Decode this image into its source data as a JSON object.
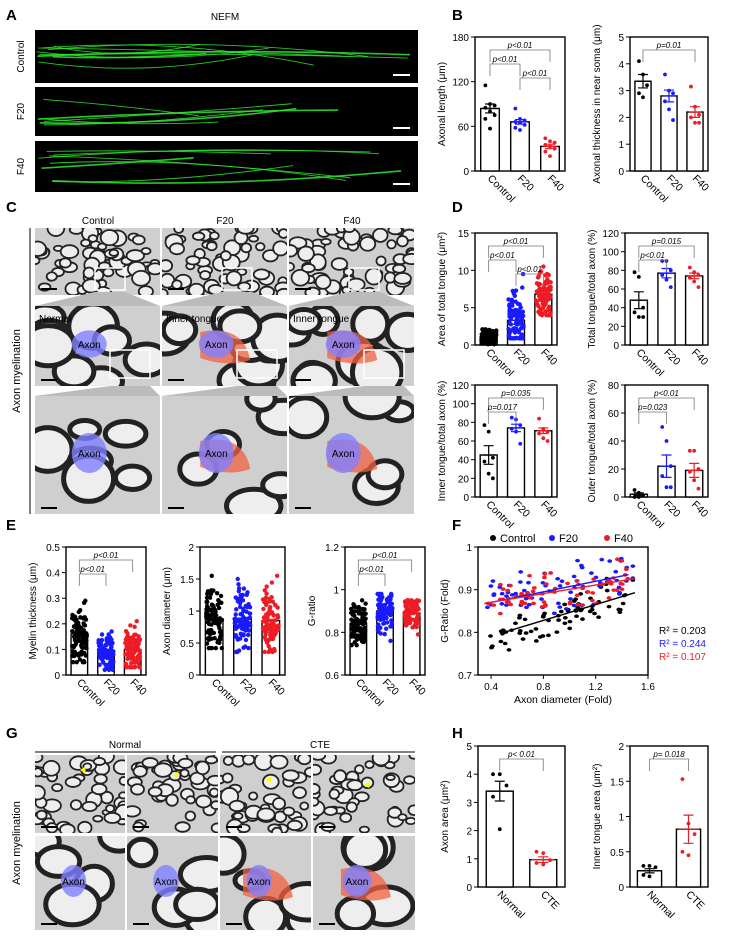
{
  "panel_labels": [
    "A",
    "B",
    "C",
    "D",
    "E",
    "F",
    "G",
    "H"
  ],
  "panel_a": {
    "title": "NEFM",
    "rows": [
      "Control",
      "F20",
      "F40"
    ]
  },
  "panel_c": {
    "side_label": "Axon myelination",
    "columns": [
      "Control",
      "F20",
      "F40"
    ],
    "mid_labels": [
      "Normal",
      "Inner tongue",
      "Inner tongue"
    ],
    "axon_label": "Axon"
  },
  "panel_g": {
    "side_label": "Axon myelination",
    "groups": [
      "Normal",
      "CTE"
    ],
    "axon_label": "Axon"
  },
  "colors": {
    "Control": "#000000",
    "F20": "#1a1aff",
    "F40": "#ee1c25",
    "Normal": "#000000",
    "CTE": "#ee1c25",
    "fluor": "#2ee82e",
    "blue_overlay": "#8080ff",
    "red_overlay": "#f06040"
  },
  "chart_data": [
    {
      "id": "B1",
      "type": "bar",
      "ylabel": "Axonal length (μm)",
      "ylim": [
        0,
        180
      ],
      "yticks": [
        0,
        60,
        120,
        180
      ],
      "categories": [
        "Control",
        "F20",
        "F40"
      ],
      "means": [
        84,
        66,
        33
      ],
      "sem": [
        6,
        3,
        3
      ],
      "points": [
        [
          115,
          90,
          88,
          85,
          80,
          75,
          70,
          57
        ],
        [
          84,
          70,
          68,
          66,
          65,
          62,
          58,
          55
        ],
        [
          44,
          40,
          38,
          35,
          33,
          30,
          26,
          20
        ]
      ],
      "comparisons": [
        {
          "a": 0,
          "b": 2,
          "label": "p<0.01"
        },
        {
          "a": 0,
          "b": 1,
          "label": "p<0.01"
        },
        {
          "a": 1,
          "b": 2,
          "label": "p<0.01"
        }
      ]
    },
    {
      "id": "B2",
      "type": "bar",
      "ylabel": "Axonal thickness in near soma (μm)",
      "ylim": [
        0,
        5
      ],
      "yticks": [
        0,
        1,
        2,
        3,
        4,
        5
      ],
      "categories": [
        "Control",
        "F20",
        "F40"
      ],
      "means": [
        3.35,
        2.8,
        2.2
      ],
      "sem": [
        0.25,
        0.22,
        0.2
      ],
      "points": [
        [
          4.1,
          3.6,
          3.2,
          2.9,
          2.75
        ],
        [
          3.6,
          3.0,
          2.9,
          2.6,
          2.3,
          1.9
        ],
        [
          3.15,
          2.4,
          2.1,
          2.0,
          1.8,
          1.8
        ]
      ],
      "comparisons": [
        {
          "a": 0,
          "b": 2,
          "label": "p=0.01"
        }
      ]
    },
    {
      "id": "D1",
      "type": "bar",
      "ylabel": "Area of total tongue (μm²)",
      "ylim": [
        0,
        15
      ],
      "yticks": [
        0,
        5,
        10,
        15
      ],
      "categories": [
        "Control",
        "F20",
        "F40"
      ],
      "means": [
        1.1,
        3.3,
        6.8
      ],
      "sem": [
        0.15,
        0.5,
        0.5
      ],
      "ranges": [
        [
          0.1,
          2.1
        ],
        [
          0.9,
          9.5
        ],
        [
          4.0,
          10.5
        ]
      ],
      "comparisons": [
        {
          "a": 0,
          "b": 2,
          "label": "p<0.01"
        },
        {
          "a": 0,
          "b": 1,
          "label": "p<0.01"
        },
        {
          "a": 1,
          "b": 2,
          "label": "p<0.01"
        }
      ]
    },
    {
      "id": "D2",
      "type": "bar",
      "ylabel": "Total tongue/total axon (%)",
      "ylim": [
        0,
        120
      ],
      "yticks": [
        0,
        20,
        40,
        60,
        80,
        100,
        120
      ],
      "categories": [
        "Control",
        "F20",
        "F40"
      ],
      "means": [
        48,
        77,
        74
      ],
      "sem": [
        9,
        5,
        3
      ],
      "points": [
        [
          78,
          73,
          40,
          35,
          30,
          30
        ],
        [
          90,
          90,
          80,
          75,
          70,
          62
        ],
        [
          83,
          78,
          75,
          72,
          68,
          62
        ]
      ],
      "comparisons": [
        {
          "a": 0,
          "b": 2,
          "label": "p=0.015"
        },
        {
          "a": 0,
          "b": 1,
          "label": "p<0.01"
        }
      ]
    },
    {
      "id": "D3",
      "type": "bar",
      "ylabel": "Inner tongue/total axon (%)",
      "ylim": [
        0,
        120
      ],
      "yticks": [
        0,
        20,
        40,
        60,
        80,
        100,
        120
      ],
      "categories": [
        "Control",
        "F20",
        "F40"
      ],
      "means": [
        45,
        74,
        71
      ],
      "sem": [
        10,
        4,
        3
      ],
      "points": [
        [
          77,
          70,
          42,
          38,
          25,
          20
        ],
        [
          85,
          83,
          77,
          73,
          70,
          57
        ],
        [
          84,
          73,
          70,
          68,
          63,
          60
        ]
      ],
      "comparisons": [
        {
          "a": 0,
          "b": 2,
          "label": "p=0.035"
        },
        {
          "a": 0,
          "b": 1,
          "label": "p=0.017"
        }
      ]
    },
    {
      "id": "D4",
      "type": "bar",
      "ylabel": "Outer tongue/total axon (%)",
      "ylim": [
        0,
        80
      ],
      "yticks": [
        0,
        20,
        40,
        60,
        80
      ],
      "categories": [
        "Control",
        "F20",
        "F40"
      ],
      "means": [
        2,
        22,
        19
      ],
      "sem": [
        1,
        8,
        5
      ],
      "points": [
        [
          5,
          3,
          1,
          0,
          0
        ],
        [
          50,
          40,
          22,
          15,
          7,
          7
        ],
        [
          33,
          33,
          20,
          18,
          12,
          6
        ]
      ],
      "comparisons": [
        {
          "a": 0,
          "b": 2,
          "label": "p<0.01"
        },
        {
          "a": 0,
          "b": 1,
          "label": "p=0.023"
        }
      ]
    },
    {
      "id": "E1",
      "type": "bar",
      "ylabel": "Myelin thickness (μm)",
      "ylim": [
        0,
        0.5
      ],
      "yticks": [
        0,
        0.1,
        0.2,
        0.3,
        0.4,
        0.5
      ],
      "categories": [
        "Control",
        "F20",
        "F40"
      ],
      "means": [
        0.16,
        0.09,
        0.1
      ],
      "sem": [
        0.005,
        0.003,
        0.003
      ],
      "ranges": [
        [
          0.05,
          0.29
        ],
        [
          0.02,
          0.17
        ],
        [
          0.03,
          0.21
        ]
      ],
      "comparisons": [
        {
          "a": 0,
          "b": 2,
          "label": "p<0.01"
        },
        {
          "a": 0,
          "b": 1,
          "label": "p<0.01"
        }
      ]
    },
    {
      "id": "E2",
      "type": "bar",
      "ylabel": "Axon diameter (μm)",
      "ylim": [
        0,
        2.0
      ],
      "yticks": [
        0,
        0.5,
        1.0,
        1.5,
        2.0
      ],
      "categories": [
        "Control",
        "F20",
        "F40"
      ],
      "means": [
        0.87,
        0.87,
        0.85
      ],
      "sem": [
        0.02,
        0.02,
        0.02
      ],
      "ranges": [
        [
          0.42,
          1.55
        ],
        [
          0.36,
          1.5
        ],
        [
          0.36,
          1.55
        ]
      ],
      "comparisons": []
    },
    {
      "id": "E3",
      "type": "bar",
      "ylabel": "G-ratio",
      "ylim": [
        0.6,
        1.2
      ],
      "yticks": [
        0.6,
        0.8,
        1.0,
        1.2
      ],
      "categories": [
        "Control",
        "F20",
        "F40"
      ],
      "means": [
        0.84,
        0.9,
        0.89
      ],
      "sem": [
        0.003,
        0.002,
        0.002
      ],
      "ranges": [
        [
          0.74,
          0.95
        ],
        [
          0.76,
          0.98
        ],
        [
          0.79,
          0.95
        ]
      ],
      "comparisons": [
        {
          "a": 0,
          "b": 2,
          "label": "p<0.01"
        },
        {
          "a": 0,
          "b": 1,
          "label": "p<0.01"
        }
      ]
    },
    {
      "id": "F",
      "type": "scatter",
      "xlabel": "Axon diameter (Fold)",
      "ylabel": "G-Ratio (Fold)",
      "xlim": [
        0.3,
        1.6
      ],
      "ylim": [
        0.7,
        1.0
      ],
      "xticks": [
        0.4,
        0.8,
        1.2,
        1.6
      ],
      "yticks": [
        0.7,
        0.8,
        0.9,
        1.0
      ],
      "legend": "top",
      "series": [
        {
          "name": "Control",
          "fit": [
            [
              0.5,
              0.8
            ],
            [
              1.5,
              0.893
            ]
          ],
          "r2": "R² = 0.203"
        },
        {
          "name": "F20",
          "fit": [
            [
              0.35,
              0.867
            ],
            [
              1.45,
              0.935
            ]
          ],
          "r2": "R² = 0.244"
        },
        {
          "name": "F40",
          "fit": [
            [
              0.35,
              0.868
            ],
            [
              1.5,
              0.926
            ]
          ],
          "r2": "R² = 0.107"
        }
      ]
    },
    {
      "id": "H1",
      "type": "bar",
      "ylabel": "Axon area (μm²)",
      "ylim": [
        0,
        5
      ],
      "yticks": [
        0,
        1,
        2,
        3,
        4,
        5
      ],
      "categories": [
        "Normal",
        "CTE"
      ],
      "means": [
        3.4,
        0.97
      ],
      "sem": [
        0.35,
        0.1
      ],
      "points": [
        [
          4.0,
          4.0,
          3.6,
          3.2,
          2.05
        ],
        [
          1.25,
          1.2,
          0.95,
          0.85,
          0.8
        ]
      ],
      "comparisons": [
        {
          "a": 0,
          "b": 1,
          "label": "p< 0.01"
        }
      ]
    },
    {
      "id": "H2",
      "type": "bar",
      "ylabel": "Inner tongue area (μm²)",
      "ylim": [
        0,
        2.0
      ],
      "yticks": [
        0,
        0.5,
        1.0,
        1.5,
        2.0
      ],
      "categories": [
        "Normal",
        "CTE"
      ],
      "means": [
        0.23,
        0.82
      ],
      "sem": [
        0.03,
        0.2
      ],
      "points": [
        [
          0.3,
          0.3,
          0.28,
          0.17,
          0.15
        ],
        [
          1.53,
          0.9,
          0.75,
          0.5,
          0.45
        ]
      ],
      "comparisons": [
        {
          "a": 0,
          "b": 1,
          "label": "p= 0.018"
        }
      ]
    }
  ]
}
